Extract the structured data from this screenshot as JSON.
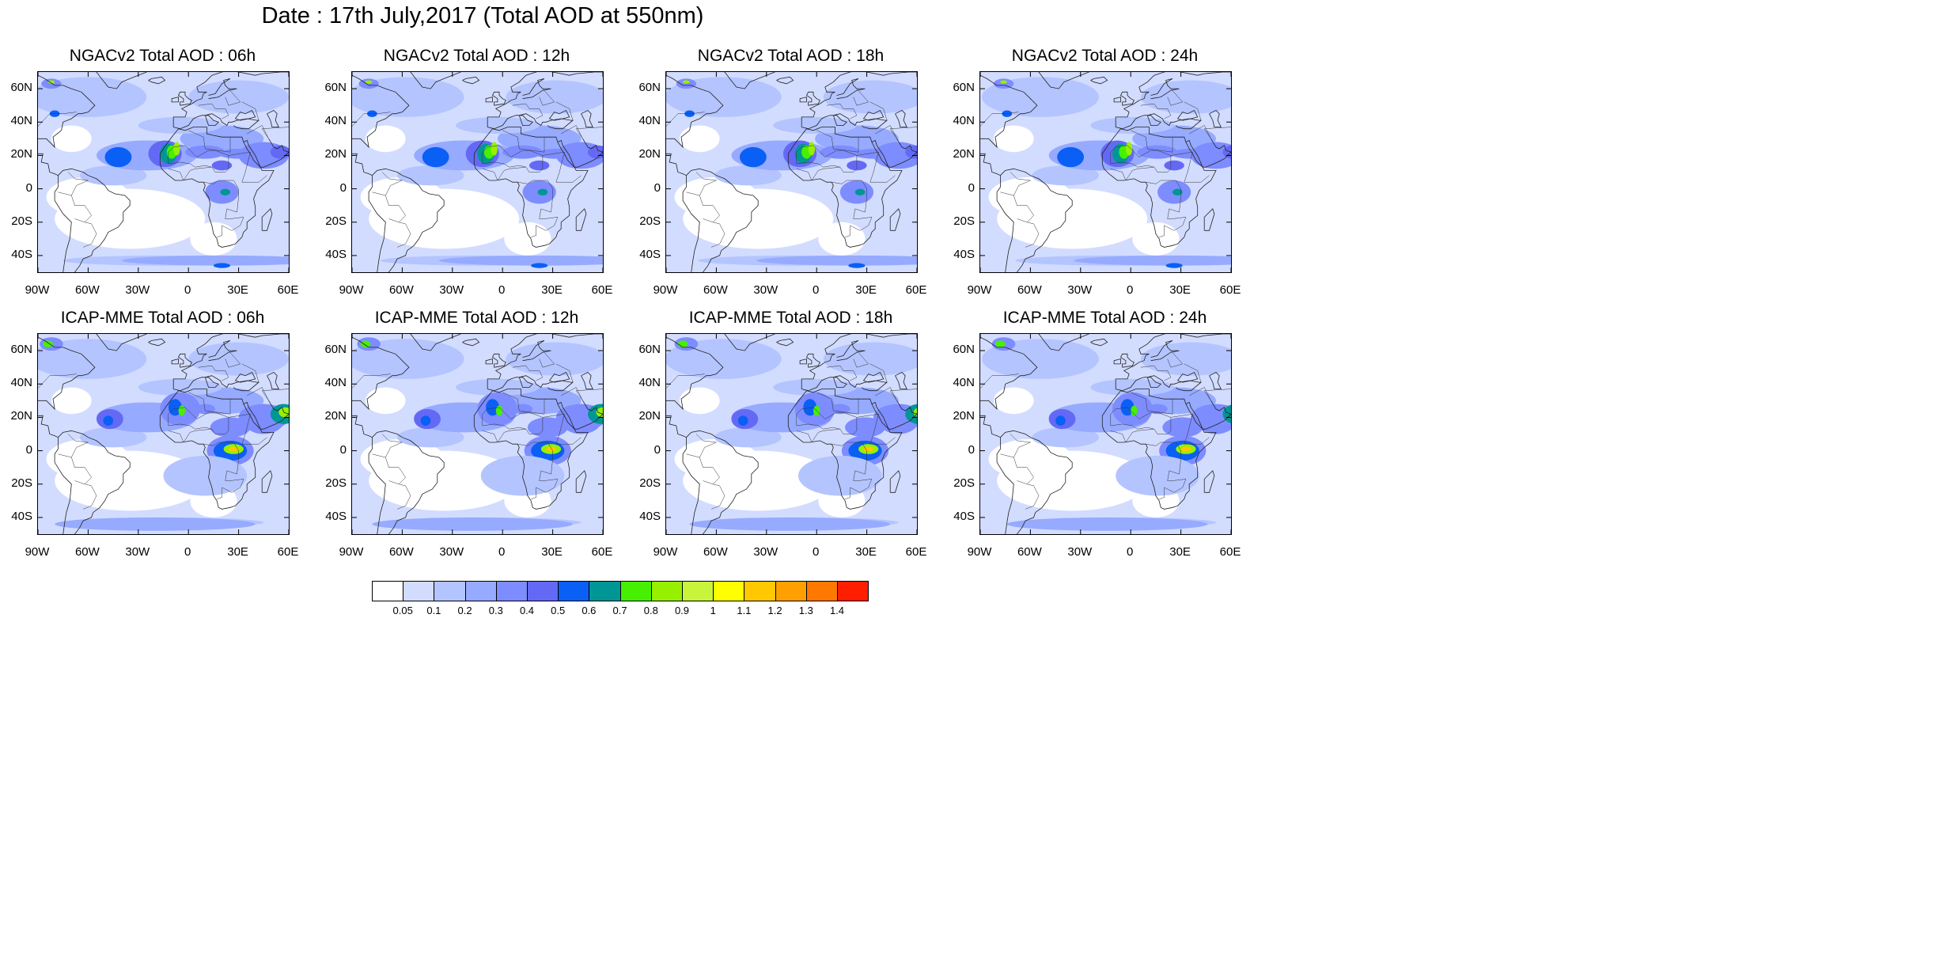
{
  "title": "Date : 17th July,2017 (Total AOD at 550nm)",
  "panels": [
    {
      "title": "NGACv2 Total AOD : 06h"
    },
    {
      "title": "NGACv2 Total AOD : 12h"
    },
    {
      "title": "NGACv2 Total AOD : 18h"
    },
    {
      "title": "NGACv2 Total AOD : 24h"
    },
    {
      "title": "ICAP-MME Total AOD : 06h"
    },
    {
      "title": "ICAP-MME Total AOD : 12h"
    },
    {
      "title": "ICAP-MME Total AOD : 18h"
    },
    {
      "title": "ICAP-MME Total AOD : 24h"
    }
  ],
  "lat_labels": [
    "60N",
    "40N",
    "20N",
    "0",
    "20S",
    "40S"
  ],
  "lon_labels": [
    "90W",
    "60W",
    "30W",
    "0",
    "30E",
    "60E"
  ],
  "map_extent": {
    "lon": [
      -90,
      60
    ],
    "lat": [
      -50,
      70
    ]
  },
  "colorbar": {
    "colors": [
      "#ffffff",
      "#d2dcff",
      "#b4c4ff",
      "#96aaff",
      "#7d8cff",
      "#6469f5",
      "#0a5ff5",
      "#009696",
      "#46f000",
      "#96f000",
      "#c8f53c",
      "#ffff00",
      "#ffc800",
      "#ffa000",
      "#ff7800",
      "#ff1e00"
    ],
    "labels": [
      "0.05",
      "0.1",
      "0.2",
      "0.3",
      "0.4",
      "0.5",
      "0.6",
      "0.7",
      "0.8",
      "0.9",
      "1",
      "1.1",
      "1.2",
      "1.3",
      "1.4"
    ]
  }
}
